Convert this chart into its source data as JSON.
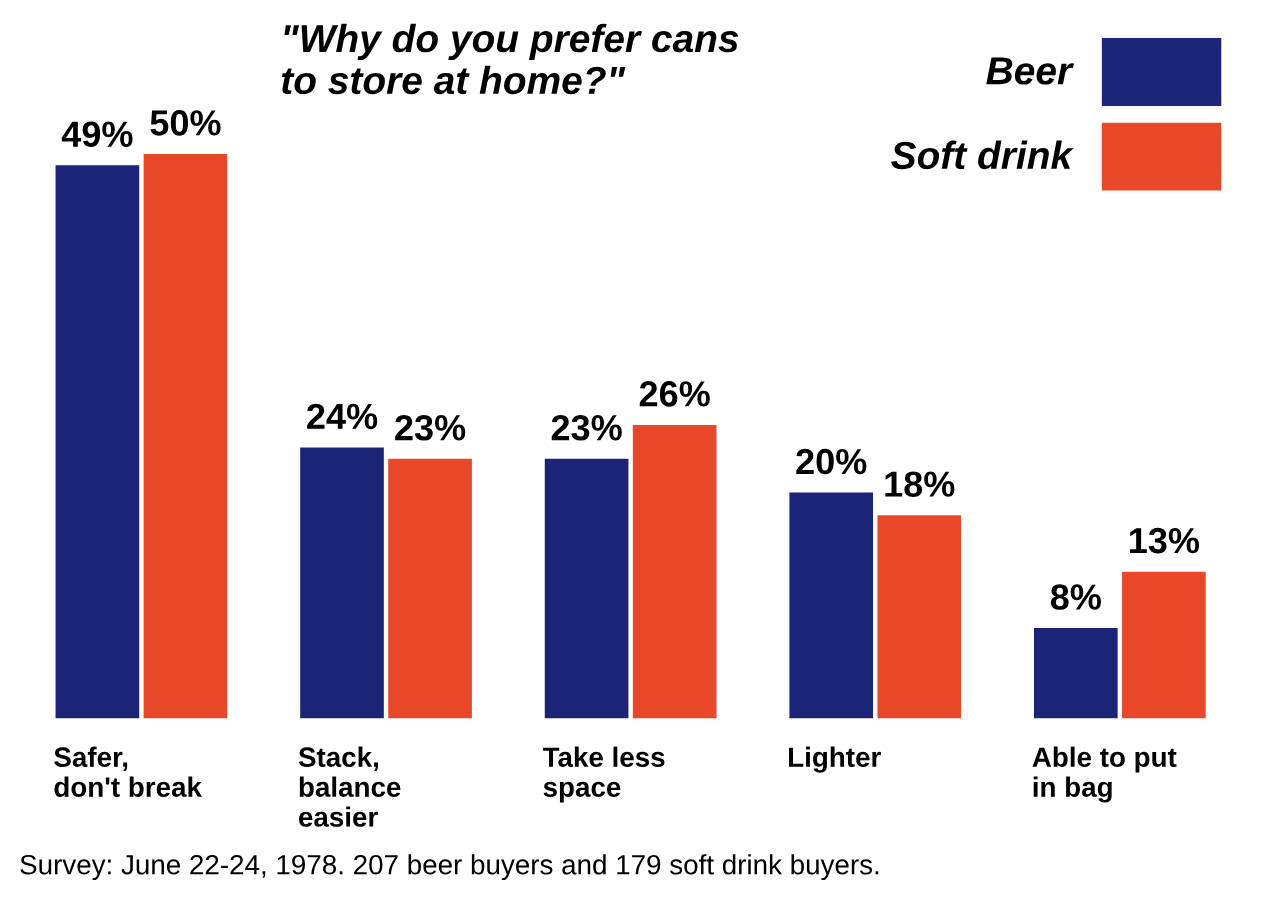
{
  "chart_data": {
    "type": "bar",
    "title": "\"Why do you prefer cans\nto store at home?\"",
    "categories": [
      "Safer,\ndon't break",
      "Stack,\nbalance\neasier",
      "Take less\nspace",
      "Lighter",
      "Able to put\nin bag"
    ],
    "series": [
      {
        "name": "Beer",
        "color": "#1c2478",
        "values": [
          49,
          24,
          23,
          20,
          8
        ],
        "value_labels": [
          "49%",
          "24%",
          "23%",
          "20%",
          "8%"
        ]
      },
      {
        "name": "Soft drink",
        "color": "#e8472a",
        "values": [
          50,
          23,
          26,
          18,
          13
        ],
        "value_labels": [
          "50%",
          "23%",
          "26%",
          "18%",
          "13%"
        ]
      }
    ],
    "legend": "top right",
    "annotations": [
      "Survey: June 22-24, 1978. 207 beer buyers and 179 soft drink buyers."
    ]
  }
}
